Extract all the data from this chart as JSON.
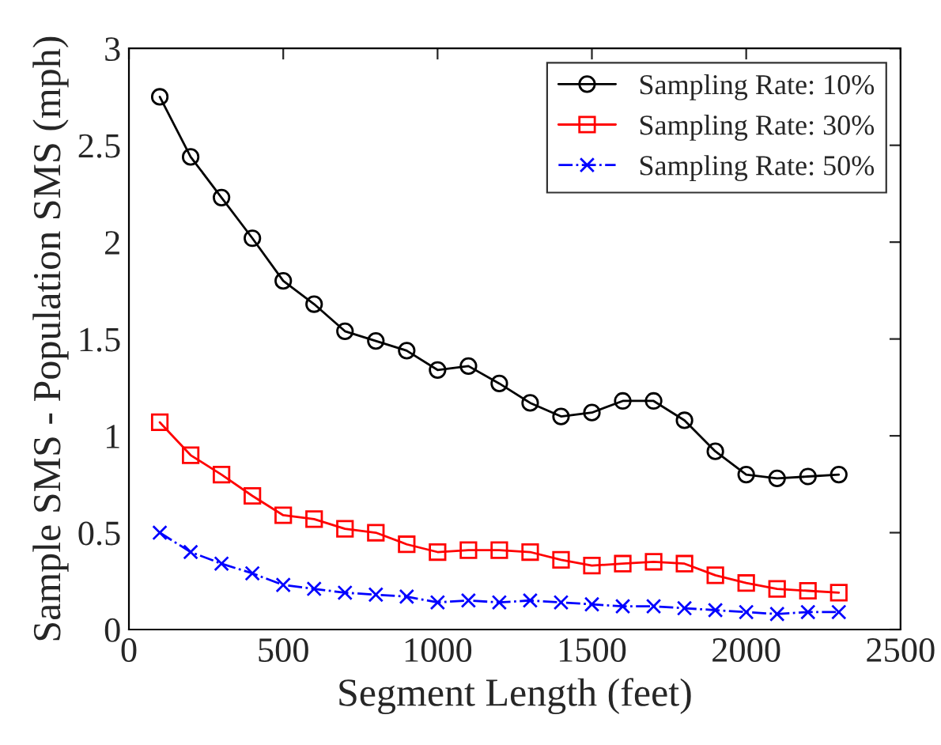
{
  "chart_data": {
    "type": "line",
    "xlabel": "Segment Length (feet)",
    "ylabel": "Sample SMS - Population SMS (mph)",
    "x": [
      100,
      200,
      300,
      400,
      500,
      600,
      700,
      800,
      900,
      1000,
      1100,
      1200,
      1300,
      1400,
      1500,
      1600,
      1700,
      1800,
      1900,
      2000,
      2100,
      2200,
      2300
    ],
    "series": [
      {
        "name": "Sampling Rate: 10%",
        "color": "#000000",
        "marker": "circle",
        "line_style": "solid",
        "values": [
          2.75,
          2.44,
          2.23,
          2.02,
          1.8,
          1.68,
          1.54,
          1.49,
          1.44,
          1.34,
          1.36,
          1.27,
          1.17,
          1.1,
          1.12,
          1.18,
          1.18,
          1.08,
          0.92,
          0.8,
          0.78,
          0.79,
          0.8
        ]
      },
      {
        "name": "Sampling Rate: 30%",
        "color": "#ff0000",
        "marker": "square",
        "line_style": "solid",
        "values": [
          1.07,
          0.9,
          0.8,
          0.69,
          0.59,
          0.57,
          0.52,
          0.5,
          0.44,
          0.4,
          0.41,
          0.41,
          0.4,
          0.36,
          0.33,
          0.34,
          0.35,
          0.34,
          0.28,
          0.24,
          0.21,
          0.2,
          0.19
        ]
      },
      {
        "name": "Sampling Rate: 50%",
        "color": "#0000ff",
        "marker": "cross",
        "line_style": "dashdot",
        "values": [
          0.5,
          0.4,
          0.34,
          0.29,
          0.23,
          0.21,
          0.19,
          0.18,
          0.17,
          0.14,
          0.15,
          0.14,
          0.15,
          0.14,
          0.13,
          0.12,
          0.12,
          0.11,
          0.1,
          0.09,
          0.08,
          0.09,
          0.09
        ]
      }
    ],
    "xlim": [
      0,
      2500
    ],
    "xticks": [
      0,
      500,
      1000,
      1500,
      2000,
      2500
    ],
    "ylim": [
      0,
      3
    ],
    "yticks": [
      0,
      0.5,
      1,
      1.5,
      2,
      2.5,
      3
    ],
    "grid": false,
    "legend": "top right"
  }
}
